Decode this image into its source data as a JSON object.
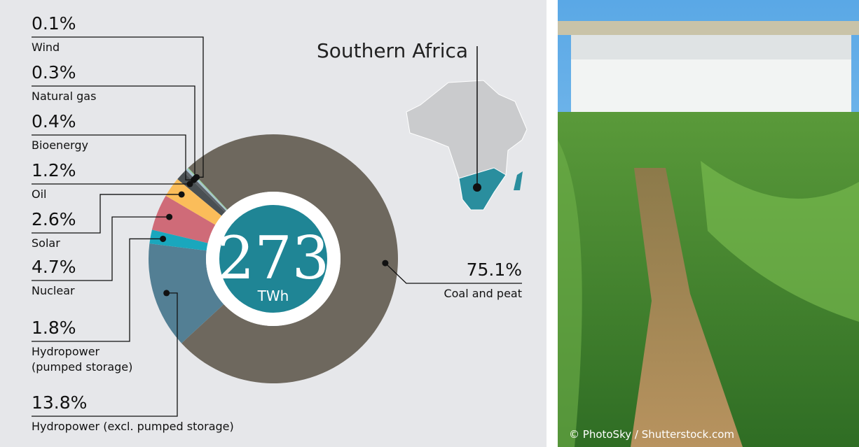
{
  "chart_data": {
    "type": "donut",
    "title": "Southern Africa",
    "center_value": "273",
    "center_unit": "TWh",
    "series": [
      {
        "name": "Coal and peat",
        "value": 75.1,
        "value_label": "75.1%",
        "color": "#6e685e"
      },
      {
        "name": "Hydropower (excl. pumped storage)",
        "value": 13.8,
        "value_label": "13.8%",
        "color": "#537f94"
      },
      {
        "name": "Hydropower (pumped storage)",
        "value": 1.8,
        "value_label": "1.8%",
        "color": "#1aa7bd"
      },
      {
        "name": "Nuclear",
        "value": 4.7,
        "value_label": "4.7%",
        "color": "#cf6b78"
      },
      {
        "name": "Solar",
        "value": 2.6,
        "value_label": "2.6%",
        "color": "#fbbd5a"
      },
      {
        "name": "Oil",
        "value": 1.2,
        "value_label": "1.2%",
        "color": "#4a5053"
      },
      {
        "name": "Bioenergy",
        "value": 0.4,
        "value_label": "0.4%",
        "color": "#5c6166"
      },
      {
        "name": "Natural gas",
        "value": 0.3,
        "value_label": "0.3%",
        "color": "#a6c3cf"
      },
      {
        "name": "Wind",
        "value": 0.1,
        "value_label": "0.1%",
        "color": "#8fd18a"
      }
    ]
  },
  "photo_credit": "© PhotoSky / Shutterstock.com"
}
